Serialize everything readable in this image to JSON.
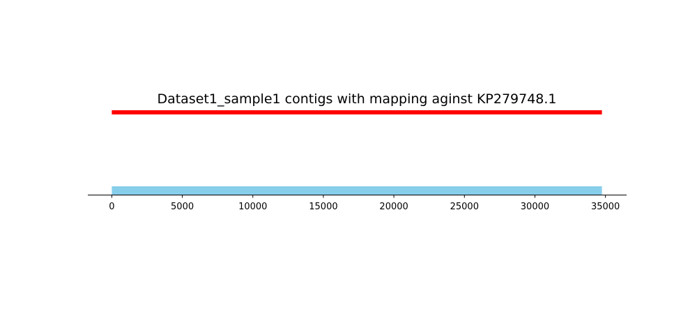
{
  "chart_data": {
    "type": "bar",
    "title": "Dataset1_sample1 contigs with mapping aginst KP279748.1",
    "xlabel": "",
    "ylabel": "",
    "xlim": [
      -1700,
      36500
    ],
    "reference": {
      "start": 0,
      "end": 34750,
      "color": "#ff0000"
    },
    "contigs": [
      {
        "start": 0,
        "end": 34750,
        "color": "#87ceeb"
      }
    ],
    "xticks": [
      0,
      5000,
      10000,
      15000,
      20000,
      25000,
      30000,
      35000
    ],
    "xtick_labels": [
      "0",
      "5000",
      "10000",
      "15000",
      "20000",
      "25000",
      "30000",
      "35000"
    ],
    "grid": false
  }
}
